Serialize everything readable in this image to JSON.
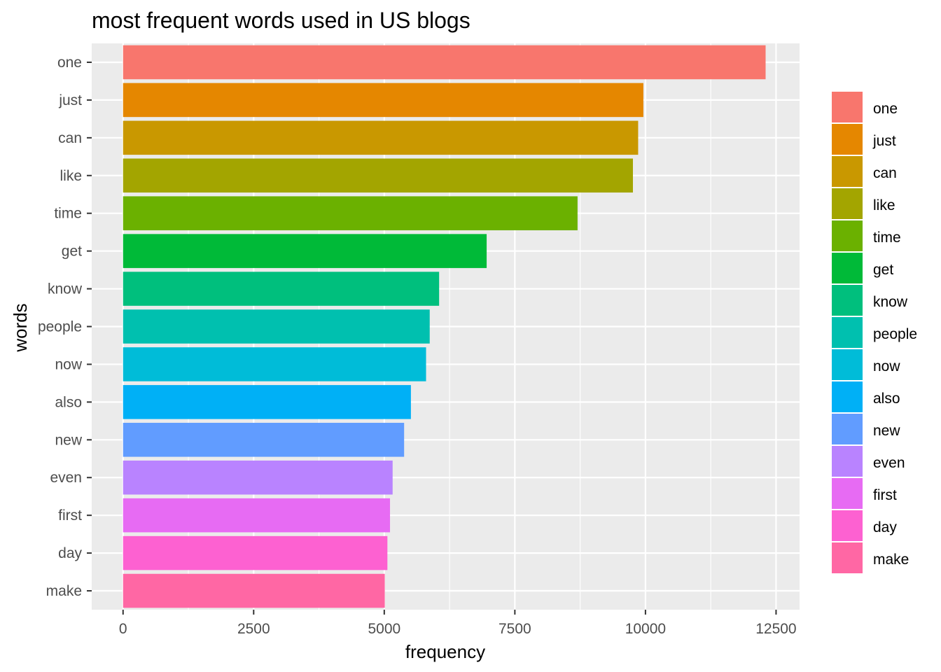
{
  "chart_data": {
    "type": "bar",
    "orientation": "horizontal",
    "title": "most frequent words used in US blogs",
    "xlabel": "frequency",
    "ylabel": "words",
    "xlim": [
      -600,
      12950
    ],
    "x_ticks": [
      0,
      2500,
      5000,
      7500,
      10000,
      12500
    ],
    "x_tick_labels": [
      "0",
      "2500",
      "5000",
      "7500",
      "10000",
      "12500"
    ],
    "categories": [
      "one",
      "just",
      "can",
      "like",
      "time",
      "get",
      "know",
      "people",
      "now",
      "also",
      "new",
      "even",
      "first",
      "day",
      "make"
    ],
    "values": [
      12300,
      9960,
      9860,
      9760,
      8700,
      6960,
      6050,
      5870,
      5800,
      5510,
      5380,
      5160,
      5110,
      5060,
      5010
    ],
    "colors": [
      "#F8766D",
      "#E58700",
      "#C99800",
      "#A3A500",
      "#6BB100",
      "#00BA38",
      "#00BF7D",
      "#00C0AF",
      "#00BCD8",
      "#00B0F6",
      "#619CFF",
      "#B983FF",
      "#E76BF3",
      "#FD61D1",
      "#FF67A4"
    ],
    "grid": true,
    "background": "#EBEBEB",
    "grid_color": "#FFFFFF",
    "legend": {
      "position": "right",
      "entries": [
        "one",
        "just",
        "can",
        "like",
        "time",
        "get",
        "know",
        "people",
        "now",
        "also",
        "new",
        "even",
        "first",
        "day",
        "make"
      ]
    }
  }
}
